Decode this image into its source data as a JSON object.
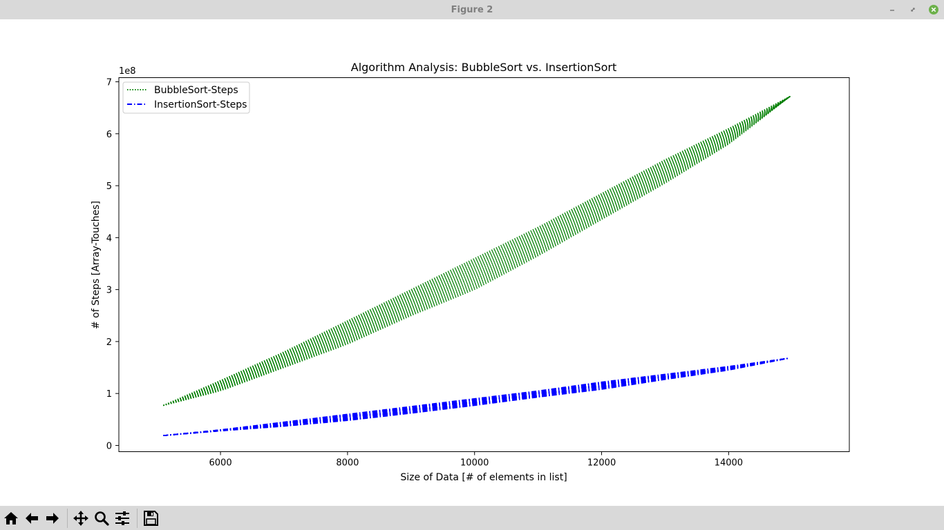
{
  "window": {
    "title": "Figure 2"
  },
  "toolbar": {
    "buttons": [
      "home-icon",
      "back-arrow-icon",
      "forward-arrow-icon",
      "pan-move-icon",
      "zoom-magnifier-icon",
      "configure-subplots-icon",
      "save-floppy-icon"
    ]
  },
  "chart_data": {
    "type": "line",
    "title": "Algorithm Analysis: BubbleSort vs. InsertionSort",
    "xlabel": "Size of Data [# of elements in list]",
    "ylabel": "# of Steps [Array-Touches]",
    "y_offset_label": "1e8",
    "xlim": [
      4400,
      15900
    ],
    "ylim": [
      -0.12,
      7.08
    ],
    "x_ticks": [
      6000,
      8000,
      10000,
      12000,
      14000
    ],
    "x_tick_labels": [
      "6000",
      "8000",
      "10000",
      "12000",
      "14000"
    ],
    "y_ticks": [
      0,
      1,
      2,
      3,
      4,
      5,
      6,
      7
    ],
    "y_tick_labels": [
      "0",
      "1",
      "2",
      "3",
      "4",
      "5",
      "6",
      "7"
    ],
    "y_units": "x 1e8 steps",
    "grid": false,
    "legend_position": "top-left",
    "series": [
      {
        "name": "BubbleSort-Steps",
        "color": "#008000",
        "linestyle": "dotted",
        "x": [
          5100,
          6000,
          7000,
          8000,
          9000,
          10000,
          11000,
          12000,
          13000,
          14000,
          14970
        ],
        "upper": [
          0.77,
          1.25,
          1.8,
          2.4,
          3.0,
          3.6,
          4.2,
          4.85,
          5.5,
          6.1,
          6.72
        ],
        "lower": [
          0.77,
          1.05,
          1.5,
          1.95,
          2.5,
          3.0,
          3.65,
          4.35,
          5.05,
          5.8,
          6.72
        ]
      },
      {
        "name": "InsertionSort-Steps",
        "color": "#0000ff",
        "linestyle": "dashdot",
        "x": [
          5100,
          6000,
          7000,
          8000,
          9000,
          10000,
          11000,
          12000,
          13000,
          14000,
          14950
        ],
        "upper": [
          0.19,
          0.3,
          0.45,
          0.6,
          0.75,
          0.9,
          1.05,
          1.22,
          1.37,
          1.52,
          1.68
        ],
        "lower": [
          0.19,
          0.28,
          0.37,
          0.48,
          0.62,
          0.77,
          0.93,
          1.08,
          1.27,
          1.45,
          1.68
        ]
      }
    ]
  }
}
